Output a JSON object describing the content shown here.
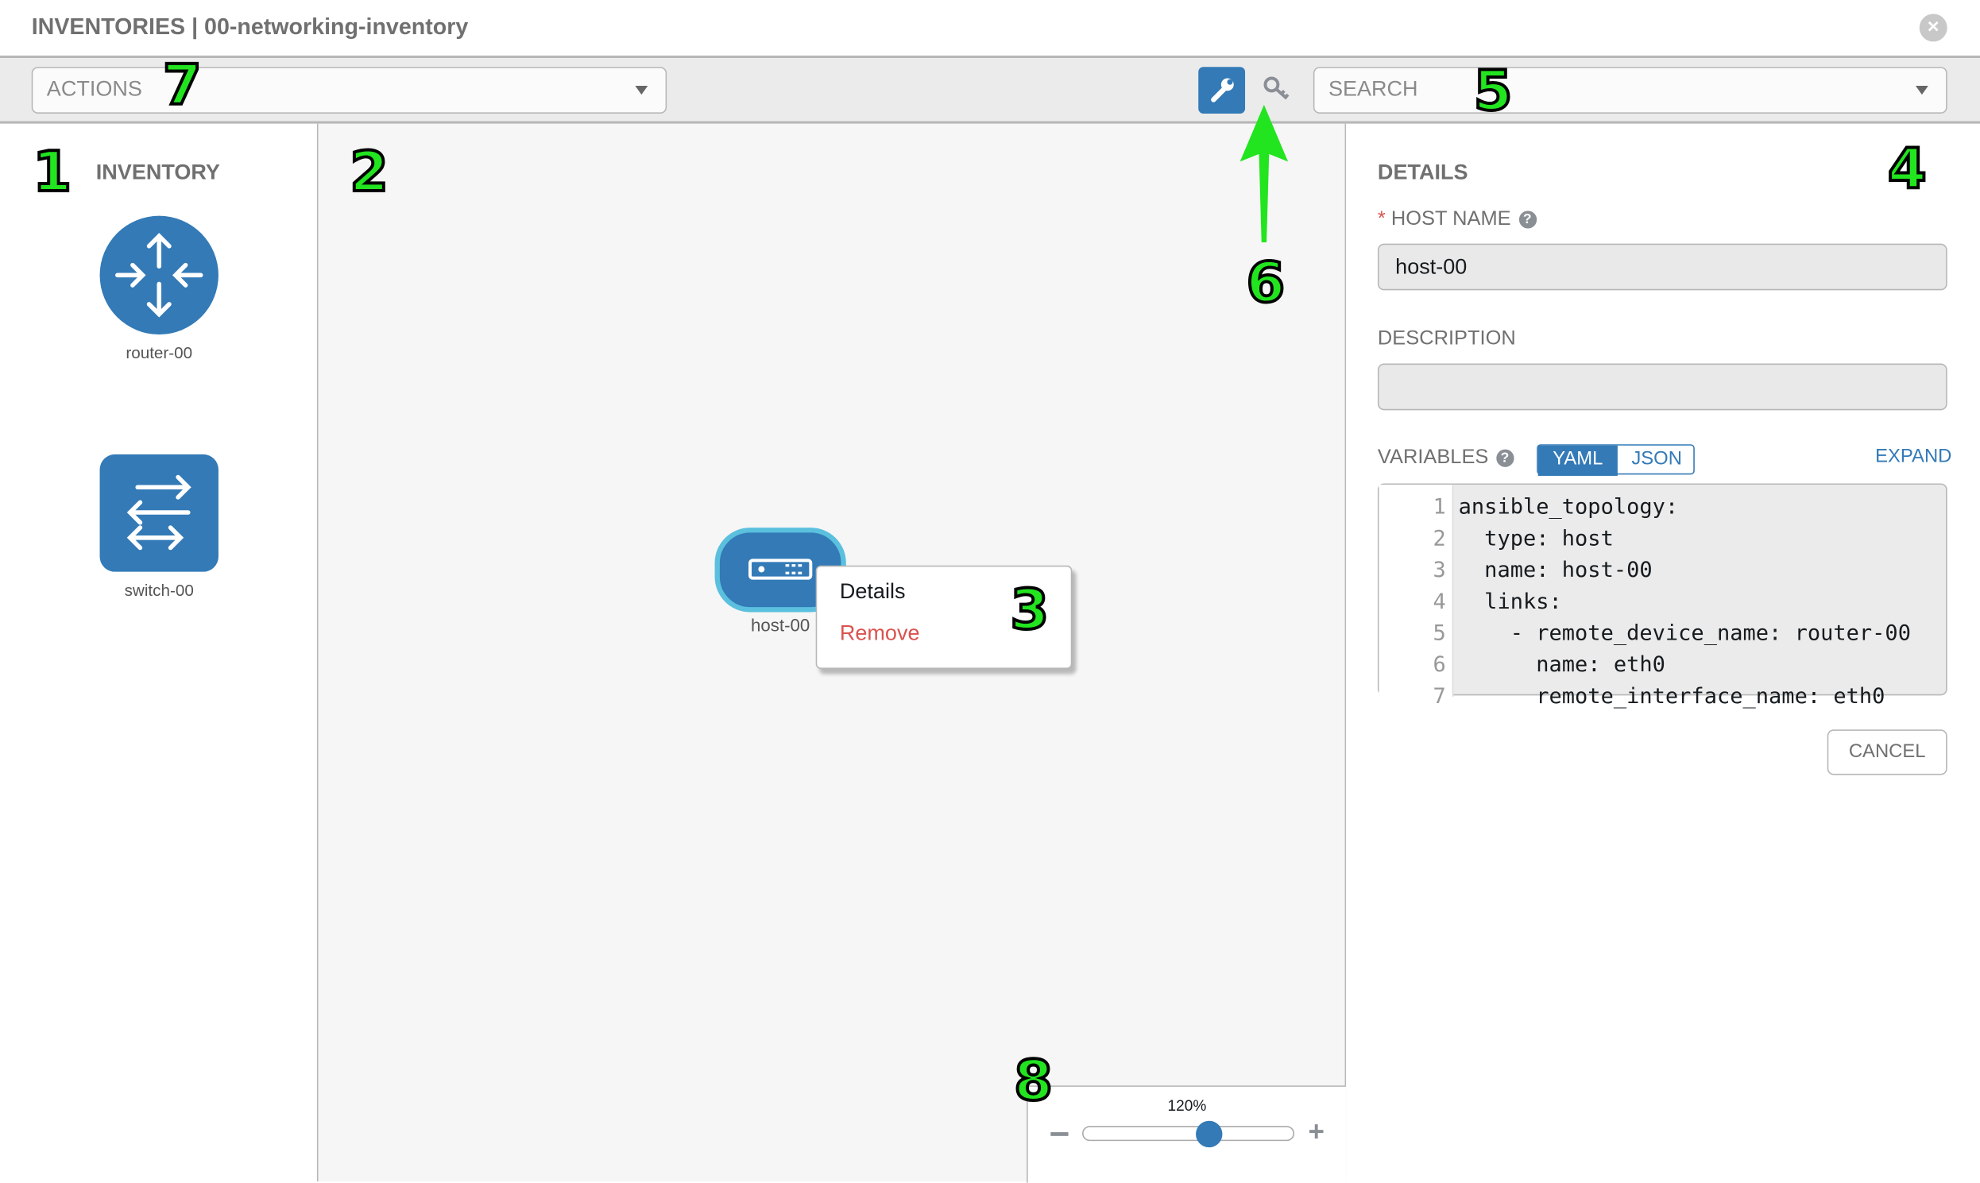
{
  "header": {
    "title": "INVENTORIES | 00-networking-inventory",
    "close_icon": "close-circle-icon"
  },
  "toolbar": {
    "actions_placeholder": "ACTIONS",
    "search_placeholder": "SEARCH",
    "wrench_icon": "wrench-icon",
    "key_icon": "key-icon"
  },
  "inventory": {
    "title": "INVENTORY",
    "items": [
      {
        "label": "router-00",
        "icon": "router-icon"
      },
      {
        "label": "switch-00",
        "icon": "switch-icon"
      }
    ]
  },
  "canvas": {
    "node": {
      "label": "host-00",
      "icon": "server-icon"
    },
    "context_menu": {
      "items": [
        "Details",
        "Remove"
      ]
    },
    "zoom": {
      "label": "120%",
      "value_percent": 120
    }
  },
  "details": {
    "title": "DETAILS",
    "host_name_label": "HOST NAME",
    "required_mark": "*",
    "host_name_value": "host-00",
    "description_label": "DESCRIPTION",
    "description_value": "",
    "variables_label": "VARIABLES",
    "yaml": "YAML",
    "json": "JSON",
    "expand": "EXPAND",
    "cancel": "CANCEL",
    "code_lines": [
      {
        "n": "1",
        "t": "ansible_topology:"
      },
      {
        "n": "2",
        "t": "  type: host"
      },
      {
        "n": "3",
        "t": "  name: host-00"
      },
      {
        "n": "4",
        "t": "  links:"
      },
      {
        "n": "5",
        "t": "    - remote_device_name: router-00"
      },
      {
        "n": "6",
        "t": "      name: eth0"
      },
      {
        "n": "7",
        "t": "      remote_interface_name: eth0"
      }
    ]
  },
  "annotations": [
    "1",
    "2",
    "3",
    "4",
    "5",
    "6",
    "7",
    "8"
  ],
  "colors": {
    "accent": "#337ab7",
    "node_border": "#5bc0de",
    "danger": "#d9534f",
    "annotation": "#22e51f"
  }
}
